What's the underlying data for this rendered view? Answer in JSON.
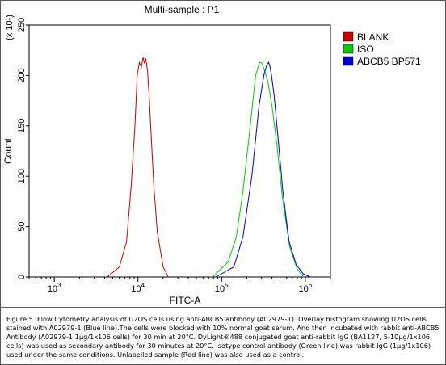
{
  "chart_data": {
    "type": "area",
    "title": "Multi-sample : P1",
    "xlabel": "FITC-A",
    "ylabel": "Count",
    "y_multiplier_label": "(x 10¹)",
    "x_scale": "log",
    "xlim": [
      500,
      2000000
    ],
    "ylim": [
      0,
      250
    ],
    "x_ticks": [
      {
        "value": 1000,
        "base": "10",
        "exp": "3"
      },
      {
        "value": 10000,
        "base": "10",
        "exp": "4"
      },
      {
        "value": 100000,
        "base": "10",
        "exp": "5"
      },
      {
        "value": 1000000,
        "base": "10",
        "exp": "6"
      }
    ],
    "y_ticks": [
      0,
      50,
      100,
      150,
      200,
      250
    ],
    "grid": false,
    "legend_position": "right",
    "series": [
      {
        "name": "BLANK",
        "color": "#cc0000",
        "x": [
          4300,
          6000,
          7300,
          8300,
          9200,
          9800,
          10400,
          11000,
          11500,
          12000,
          12400,
          13000,
          13600,
          14400,
          15500,
          17000,
          20000,
          23000
        ],
        "y": [
          0,
          10,
          35,
          90,
          150,
          200,
          213,
          208,
          218,
          212,
          217,
          205,
          180,
          140,
          90,
          45,
          10,
          0
        ]
      },
      {
        "name": "ISO",
        "color": "#00cc00",
        "x": [
          78000,
          120000,
          150000,
          180000,
          220000,
          255000,
          285000,
          305000,
          325000,
          355000,
          400000,
          460000,
          530000,
          650000,
          800000,
          950000
        ],
        "y": [
          0,
          15,
          40,
          85,
          150,
          200,
          213,
          212,
          205,
          195,
          170,
          130,
          80,
          30,
          8,
          0
        ]
      },
      {
        "name": "ABCB5 BP571",
        "color": "#0000cc",
        "x": [
          85000,
          140000,
          180000,
          230000,
          280000,
          320000,
          345000,
          365000,
          380000,
          395000,
          425000,
          470000,
          540000,
          640000,
          780000,
          950000,
          1150000
        ],
        "y": [
          0,
          10,
          40,
          100,
          170,
          200,
          210,
          213,
          208,
          200,
          180,
          140,
          85,
          35,
          12,
          3,
          0
        ]
      }
    ]
  },
  "caption": "Figure 5. Flow Cytometry analysis of U2OS cells using anti-ABCB5 antibody (A02979-1).  Overlay histogram showing U2OS cells\nstained with A02979-1 (Blue line).The cells were blocked with 10% normal goat serum. And then incubated with rabbit anti-ABCB5\nAntibody (A02979-1,1μg/1x106 cells) for 30 min at 20°C. DyLight®488 conjugated goat anti-rabbit IgG (BA1127, 5-10μg/1x106\ncells) was used as secondary antibody for 30 minutes at 20°C. Isotype control antibody (Green line) was rabbit IgG (1μg/1x106)\nused under the same conditions. Unlabelled sample (Red line) was also used as a control."
}
